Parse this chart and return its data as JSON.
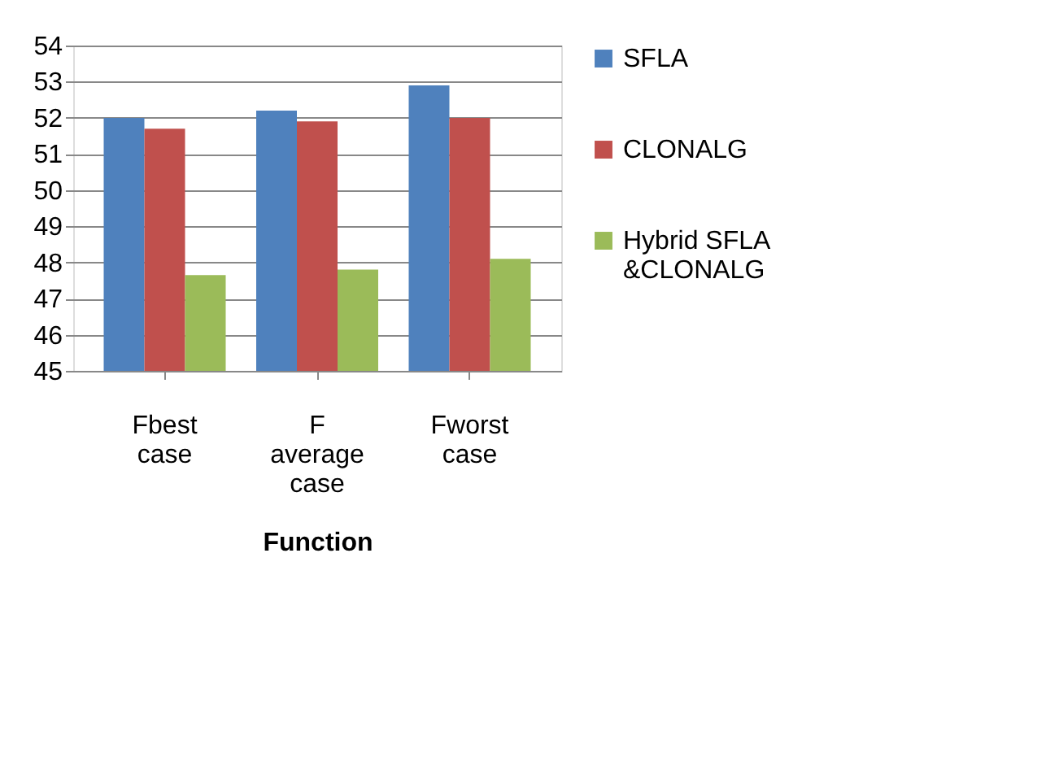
{
  "chart_data": {
    "type": "bar",
    "categories": [
      "Fbest case",
      "F average case",
      "Fworst case"
    ],
    "xlabel": "Function",
    "series": [
      {
        "name": "SFLA",
        "color": "#4f81bd",
        "values": [
          52.0,
          52.2,
          52.9
        ]
      },
      {
        "name": "CLONALG",
        "color": "#c0504d",
        "values": [
          51.7,
          51.9,
          52.0
        ]
      },
      {
        "name": "Hybrid SFLA &CLONALG",
        "color": "#9bbb59",
        "values": [
          47.65,
          47.8,
          48.1
        ]
      }
    ],
    "ylim": [
      45,
      54
    ],
    "yticks": [
      45,
      46,
      47,
      48,
      49,
      50,
      51,
      52,
      53,
      54
    ],
    "grid": "y",
    "legend": "right"
  }
}
